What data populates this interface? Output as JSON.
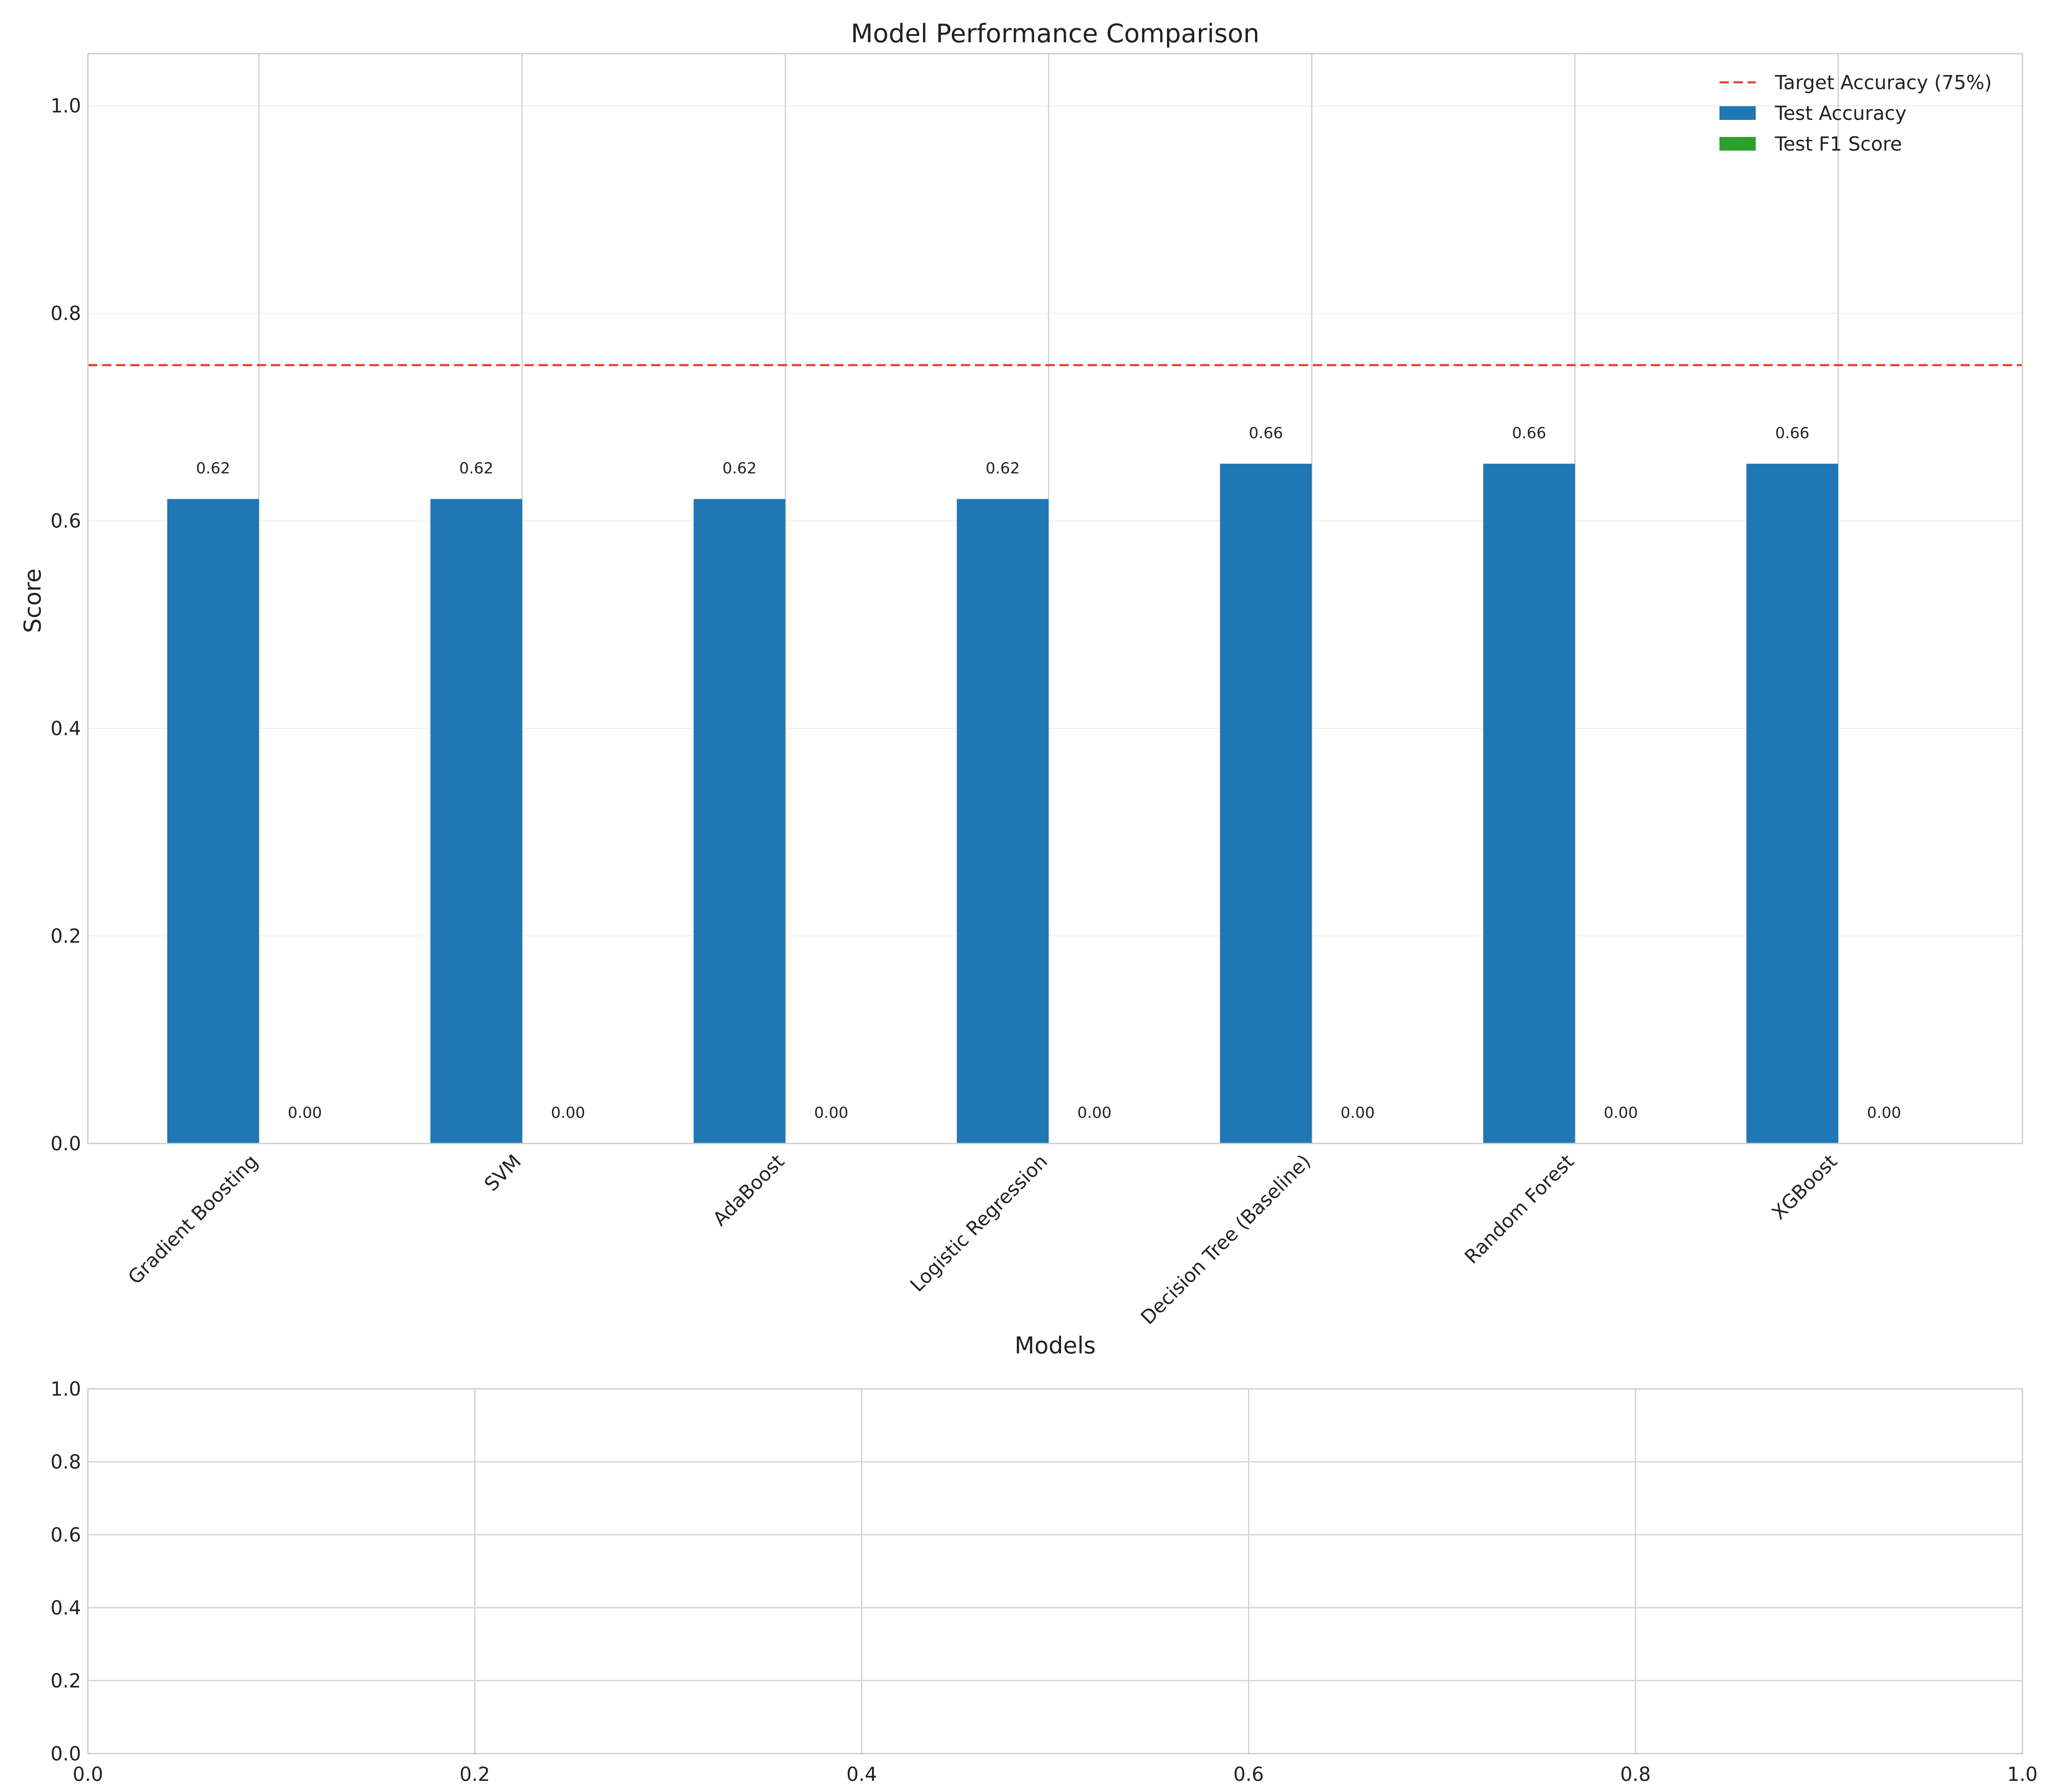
{
  "chart_data": [
    {
      "type": "bar",
      "title": "Model Performance Comparison",
      "xlabel": "Models",
      "ylabel": "Score",
      "ylim": [
        0,
        1.05
      ],
      "yticks": [
        0.0,
        0.2,
        0.4,
        0.6,
        0.8,
        1.0
      ],
      "ytick_labels": [
        "0.0",
        "0.2",
        "0.4",
        "0.6",
        "0.8",
        "1.0"
      ],
      "grid": true,
      "legend_position": "top-right",
      "categories": [
        "Gradient Boosting",
        "SVM",
        "AdaBoost",
        "Logistic Regression",
        "Decision Tree (Baseline)",
        "Random Forest",
        "XGBoost"
      ],
      "series": [
        {
          "name": "Test Accuracy",
          "color": "#1f77b4",
          "values": [
            0.621,
            0.621,
            0.621,
            0.621,
            0.655,
            0.655,
            0.655
          ],
          "labels": [
            "0.62",
            "0.62",
            "0.62",
            "0.62",
            "0.66",
            "0.66",
            "0.66"
          ]
        },
        {
          "name": "Test F1 Score",
          "color": "#2ca02c",
          "values": [
            0,
            0,
            0,
            0,
            0,
            0,
            0
          ],
          "labels": [
            "0.00",
            "0.00",
            "0.00",
            "0.00",
            "0.00",
            "0.00",
            "0.00"
          ]
        }
      ],
      "reference_line": {
        "name": "Target Accuracy (75%)",
        "value": 0.75,
        "color": "#e8413a",
        "style": "dashed"
      }
    },
    {
      "type": "line",
      "title": "",
      "xlim": [
        0,
        1
      ],
      "ylim": [
        0,
        1
      ],
      "xticks": [
        0.0,
        0.2,
        0.4,
        0.6,
        0.8,
        1.0
      ],
      "xtick_labels": [
        "0.0",
        "0.2",
        "0.4",
        "0.6",
        "0.8",
        "1.0"
      ],
      "yticks": [
        0.0,
        0.2,
        0.4,
        0.6,
        0.8,
        1.0
      ],
      "ytick_labels": [
        "0.0",
        "0.2",
        "0.4",
        "0.6",
        "0.8",
        "1.0"
      ],
      "grid": true,
      "series": []
    }
  ]
}
